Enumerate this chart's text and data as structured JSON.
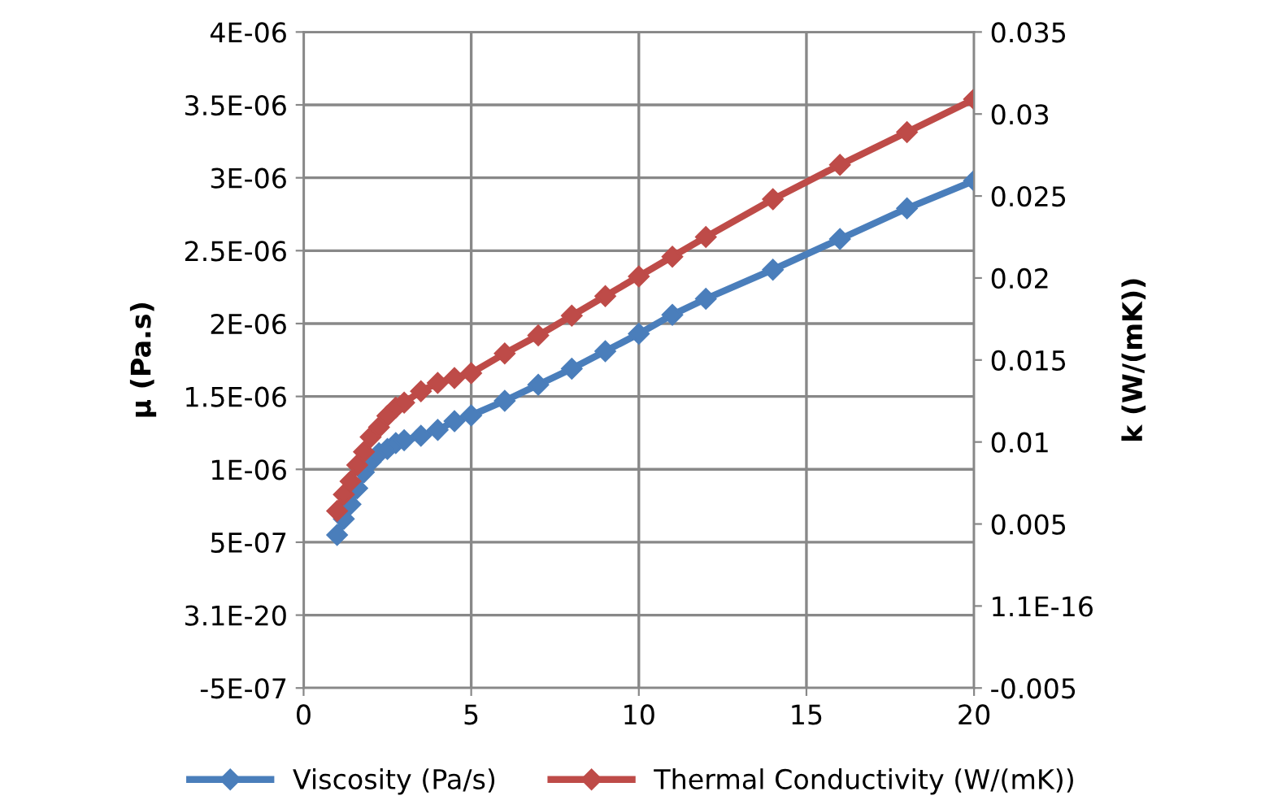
{
  "chart_data": {
    "type": "line",
    "ylabel": "μ (Pa.s)",
    "y2label": "k (W/(mK))",
    "x": [
      1,
      1.2,
      1.4,
      1.6,
      1.8,
      2,
      2.25,
      2.5,
      2.75,
      3,
      3.5,
      4,
      4.5,
      5,
      6,
      7,
      8,
      9,
      10,
      11,
      12,
      14,
      16,
      18,
      20
    ],
    "series": [
      {
        "name": "Viscosity (Pa/s)",
        "color": "#4a7ebb",
        "values": [
          5.5e-07,
          6.6e-07,
          7.6e-07,
          8.7e-07,
          9.8e-07,
          1.05e-06,
          1.11e-06,
          1.14e-06,
          1.18e-06,
          1.2e-06,
          1.23e-06,
          1.27e-06,
          1.33e-06,
          1.37e-06,
          1.47e-06,
          1.58e-06,
          1.69e-06,
          1.81e-06,
          1.93e-06,
          2.06e-06,
          2.17e-06,
          2.37e-06,
          2.58e-06,
          2.79e-06,
          2.98e-06
        ]
      },
      {
        "name": "Thermal Conductivity (W/(mK))",
        "color": "#be4b48",
        "axis": "y2",
        "values": [
          0.0058,
          0.0068,
          0.0076,
          0.0086,
          0.0094,
          0.0103,
          0.0109,
          0.0116,
          0.0121,
          0.0124,
          0.0131,
          0.0136,
          0.0139,
          0.0142,
          0.0154,
          0.0165,
          0.0177,
          0.0189,
          0.0201,
          0.0213,
          0.0225,
          0.0248,
          0.0269,
          0.0289,
          0.0309
        ]
      }
    ],
    "xlim": [
      0,
      20
    ],
    "xticks": [
      0,
      5,
      10,
      15,
      20
    ],
    "ylim": [
      -5e-07,
      4e-06
    ],
    "yticks": [
      {
        "value": -5e-07,
        "label": "-5E-07"
      },
      {
        "value": 0,
        "label": "3.1E-20"
      },
      {
        "value": 5e-07,
        "label": "5E-07"
      },
      {
        "value": 1e-06,
        "label": "1E-06"
      },
      {
        "value": 1.5e-06,
        "label": "1.5E-06"
      },
      {
        "value": 2e-06,
        "label": "2E-06"
      },
      {
        "value": 2.5e-06,
        "label": "2.5E-06"
      },
      {
        "value": 3e-06,
        "label": "3E-06"
      },
      {
        "value": 3.5e-06,
        "label": "3.5E-06"
      },
      {
        "value": 4e-06,
        "label": "4E-06"
      }
    ],
    "y2lim": [
      -0.005,
      0.035
    ],
    "y2ticks": [
      -0.005,
      {
        "value": 0,
        "label": "1.1E-16"
      },
      0.005,
      0.01,
      0.015,
      0.02,
      0.025,
      0.03,
      0.035
    ],
    "grid": true,
    "legend": "bottom",
    "marker": "diamond",
    "line_style": "solid"
  }
}
